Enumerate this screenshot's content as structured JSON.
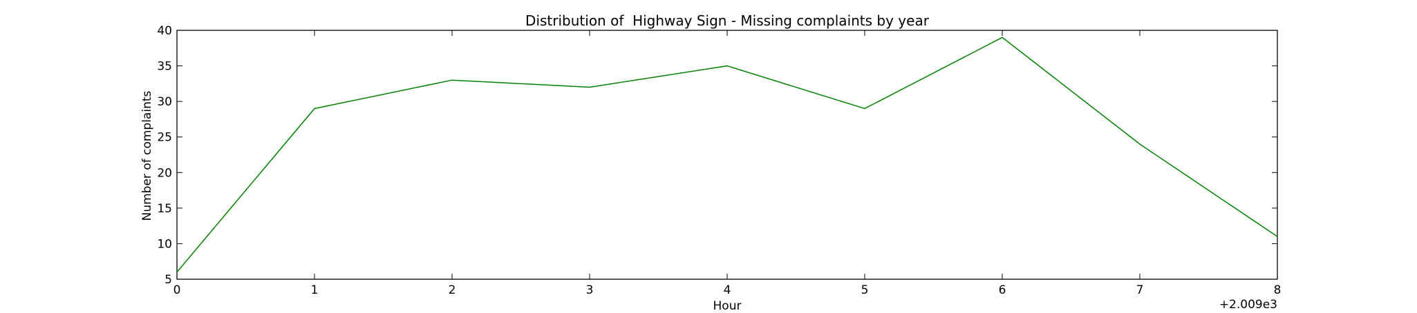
{
  "chart_data": {
    "type": "line",
    "title": "Distribution of  Highway Sign - Missing complaints by year",
    "xlabel": "Hour",
    "ylabel": "Number of complaints",
    "x_offset_label": "+2.009e3",
    "x": [
      0,
      1,
      2,
      3,
      4,
      5,
      6,
      7,
      8
    ],
    "xlim": [
      0,
      8
    ],
    "ylim": [
      5,
      40
    ],
    "x_ticks": [
      0,
      1,
      2,
      3,
      4,
      5,
      6,
      7,
      8
    ],
    "y_ticks": [
      5,
      10,
      15,
      20,
      25,
      30,
      35,
      40
    ],
    "grid": false,
    "series": [
      {
        "values": [
          6,
          29,
          33,
          32,
          35,
          29,
          39,
          24,
          11
        ],
        "color": "#008000"
      }
    ]
  }
}
